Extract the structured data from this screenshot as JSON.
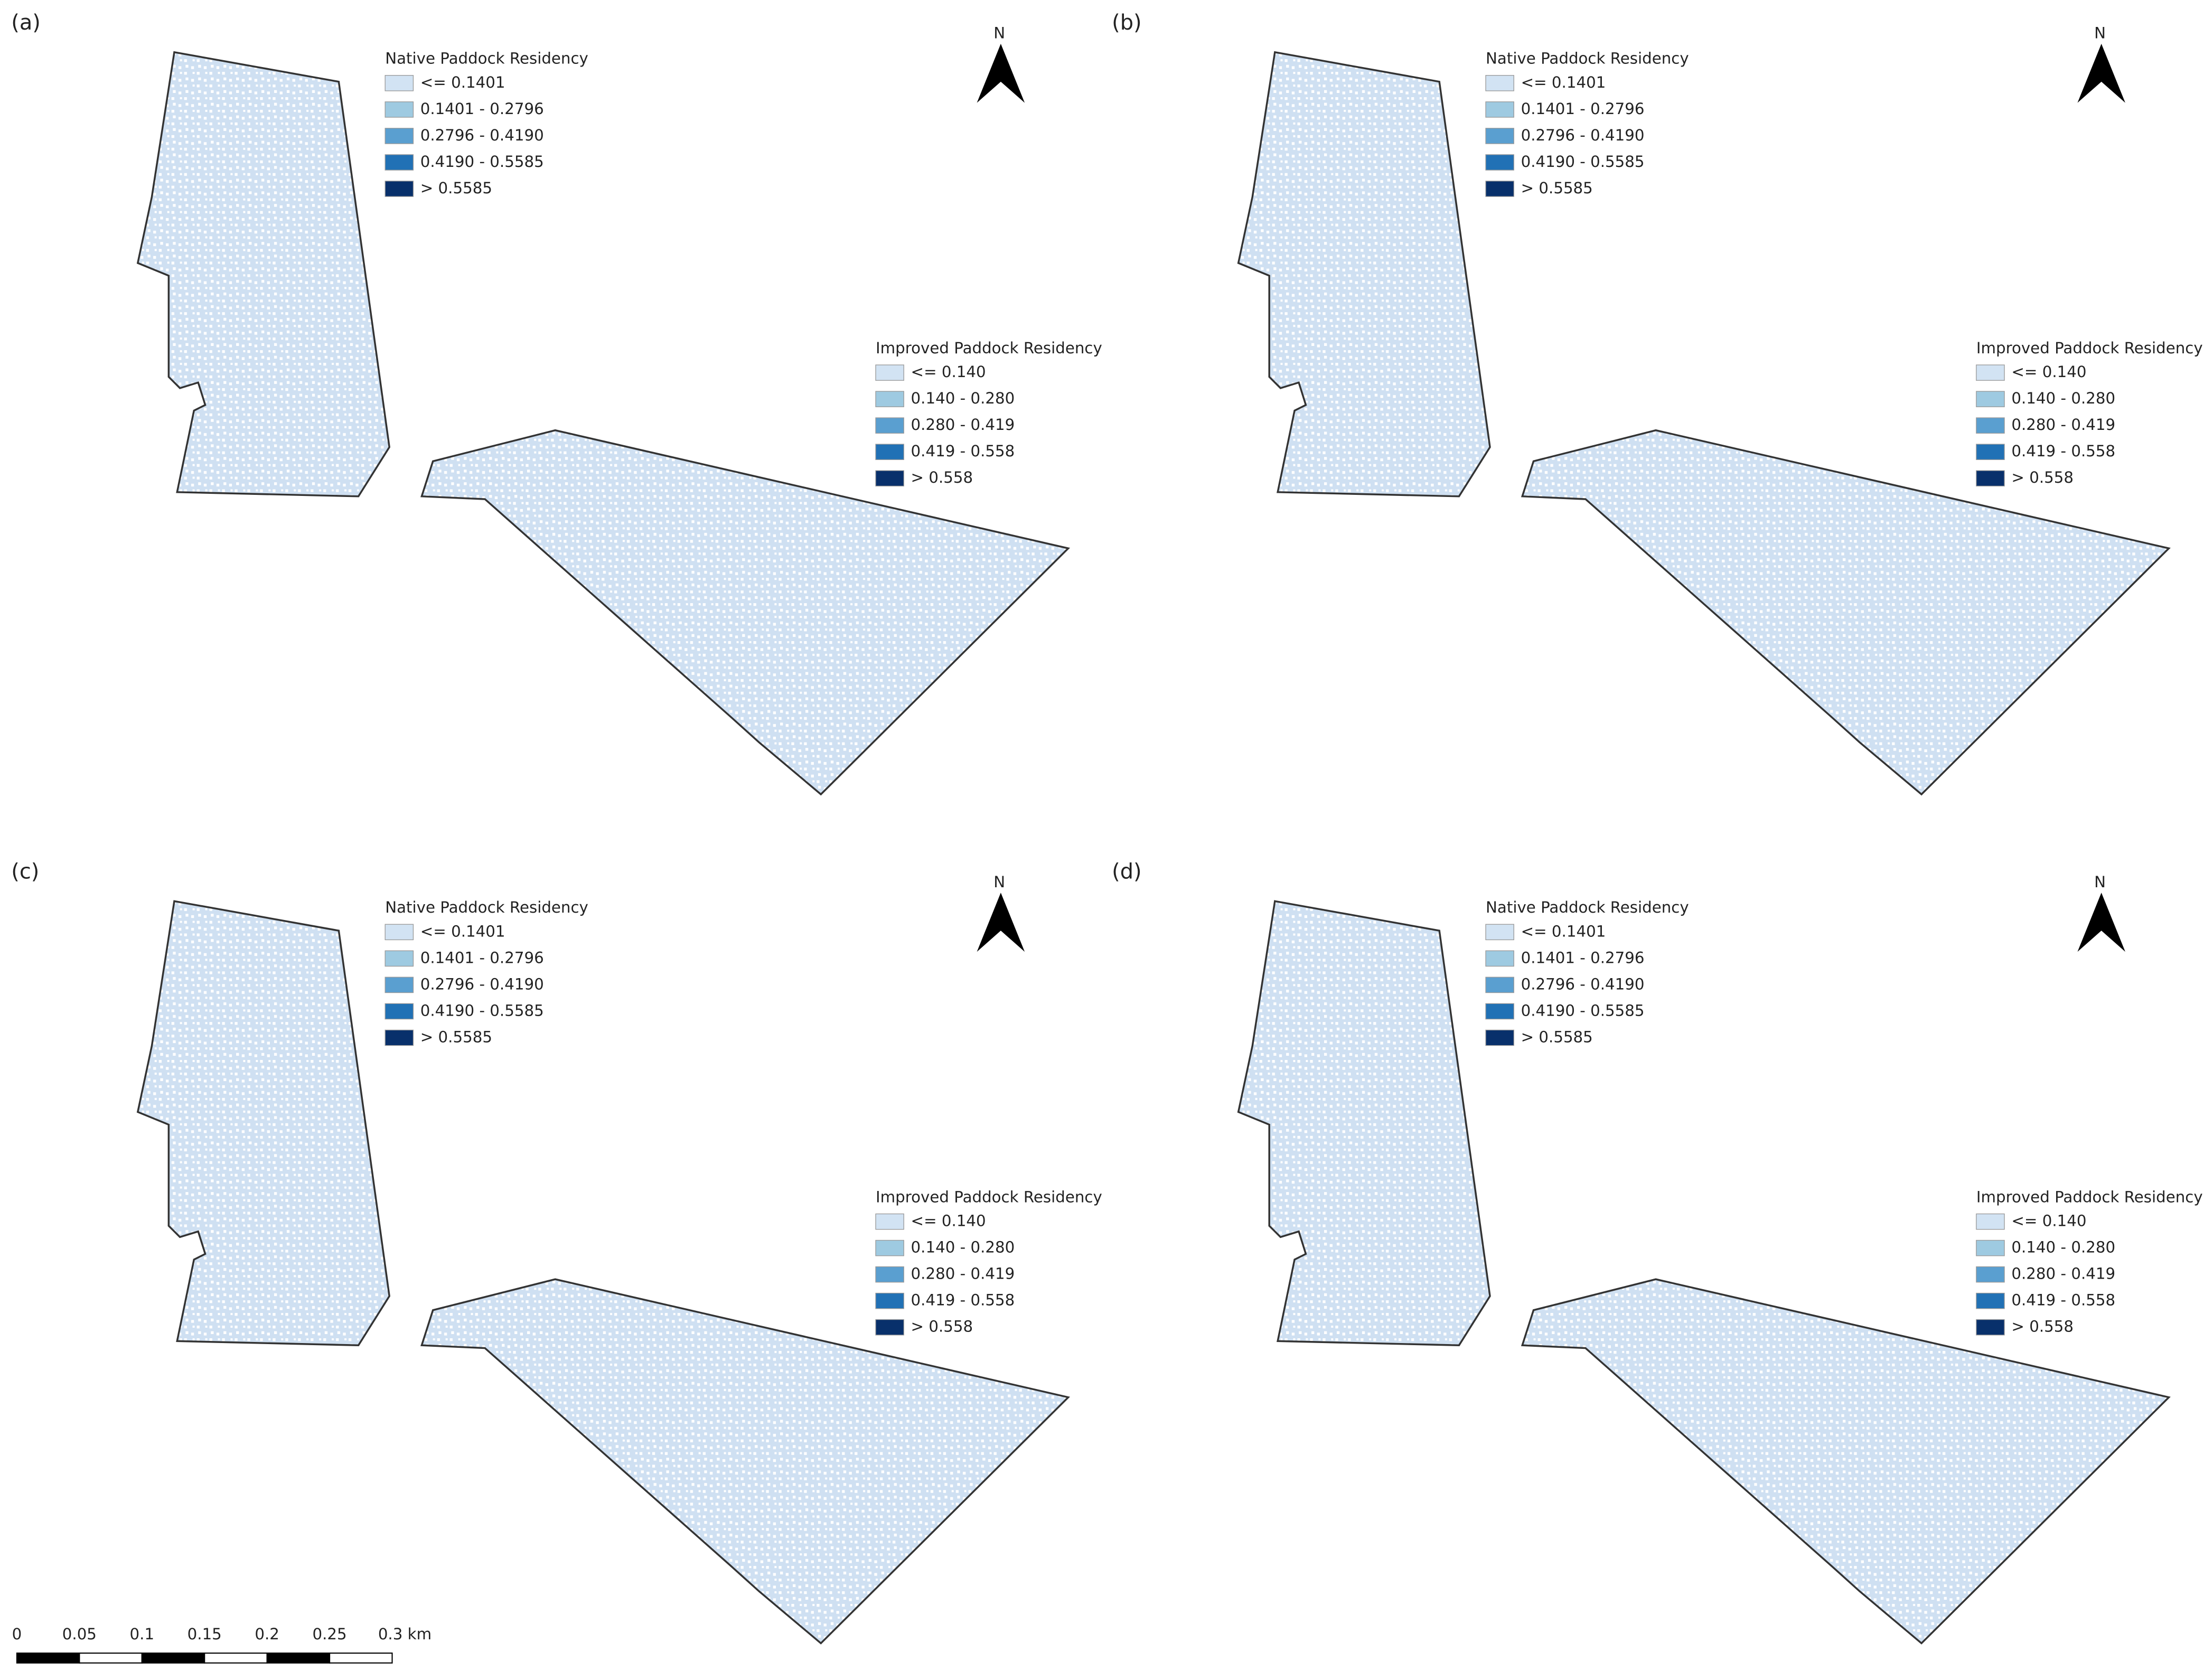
{
  "panels": [
    {
      "label": "(a)",
      "north": "N",
      "native_legend": {
        "title": "Native Paddock Residency",
        "items": [
          "<= 0.1401",
          "0.1401 - 0.2796",
          "0.2796 - 0.4190",
          "0.4190 - 0.5585",
          "> 0.5585"
        ]
      },
      "improved_legend": {
        "title": "Improved Paddock Residency",
        "items": [
          "<= 0.140",
          "0.140 - 0.280",
          "0.280 - 0.419",
          "0.419 - 0.558",
          "> 0.558"
        ]
      }
    },
    {
      "label": "(b)",
      "north": "N",
      "native_legend": {
        "title": "Native Paddock Residency",
        "items": [
          "<= 0.1401",
          "0.1401 - 0.2796",
          "0.2796 - 0.4190",
          "0.4190 - 0.5585",
          "> 0.5585"
        ]
      },
      "improved_legend": {
        "title": "Improved Paddock Residency",
        "items": [
          "<= 0.140",
          "0.140 - 0.280",
          "0.280 - 0.419",
          "0.419 - 0.558",
          "> 0.558"
        ]
      }
    },
    {
      "label": "(c)",
      "north": "N",
      "native_legend": {
        "title": "Native Paddock Residency",
        "items": [
          "<= 0.1401",
          "0.1401 - 0.2796",
          "0.2796 - 0.4190",
          "0.4190 - 0.5585",
          "> 0.5585"
        ]
      },
      "improved_legend": {
        "title": "Improved Paddock Residency",
        "items": [
          "<= 0.140",
          "0.140 - 0.280",
          "0.280 - 0.419",
          "0.419 - 0.558",
          "> 0.558"
        ]
      }
    },
    {
      "label": "(d)",
      "north": "N",
      "native_legend": {
        "title": "Native Paddock Residency",
        "items": [
          "<= 0.1401",
          "0.1401 - 0.2796",
          "0.2796 - 0.4190",
          "0.4190 - 0.5585",
          "> 0.5585"
        ]
      },
      "improved_legend": {
        "title": "Improved Paddock Residency",
        "items": [
          "<= 0.140",
          "0.140 - 0.280",
          "0.280 - 0.419",
          "0.419 - 0.558",
          "> 0.558"
        ]
      }
    }
  ],
  "legend_colors": [
    "#d2e3f3",
    "#9ecae1",
    "#5a9fd0",
    "#2171b5",
    "#08306b"
  ],
  "scale_bar": {
    "labels": [
      "0",
      "0.05",
      "0.1",
      "0.15",
      "0.2",
      "0.25",
      "0.3 km"
    ]
  }
}
